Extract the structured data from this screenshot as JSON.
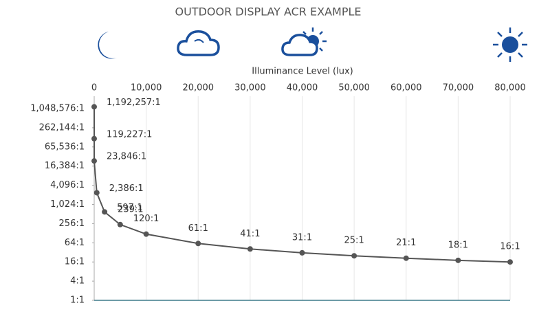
{
  "chart_data": {
    "type": "line",
    "title": "OUTDOOR DISPLAY ACR EXAMPLE",
    "x_label": "Illuminance Level (lux)",
    "x": [
      0,
      0,
      0,
      500,
      2000,
      5000,
      10000,
      20000,
      30000,
      40000,
      50000,
      60000,
      70000,
      80000
    ],
    "series": [
      {
        "color": "#555555",
        "values": [
          1192257,
          119227,
          23846,
          2386,
          597,
          239,
          120,
          61,
          41,
          31,
          25,
          21,
          18,
          16
        ],
        "value_labels": [
          "1,192,257:1",
          "119,227:1",
          "23,846:1",
          "2,386:1",
          "597:1",
          "239:1",
          "120:1",
          "61:1",
          "41:1",
          "31:1",
          "25:1",
          "21:1",
          "18:1",
          "16:1"
        ]
      }
    ],
    "xlim": [
      0,
      80000
    ],
    "xticks": [
      0,
      {
        "value": 10000,
        "label": "10,000"
      },
      {
        "value": 20000,
        "label": "20,000"
      },
      {
        "value": 30000,
        "label": "30,000"
      },
      {
        "value": 40000,
        "label": "40,000"
      },
      {
        "value": 50000,
        "label": "50,000"
      },
      {
        "value": 60000,
        "label": "60,000"
      },
      {
        "value": 70000,
        "label": "70,000"
      },
      {
        "value": 80000,
        "label": "80,000"
      }
    ],
    "ylim": [
      1,
      1048576
    ],
    "y_scale": "log",
    "yticks": [
      {
        "value": 1,
        "label": "1:1"
      },
      {
        "value": 4,
        "label": "4:1"
      },
      {
        "value": 16,
        "label": "16:1"
      },
      {
        "value": 64,
        "label": "64:1"
      },
      {
        "value": 256,
        "label": "256:1"
      },
      {
        "value": 1024,
        "label": "1,024:1"
      },
      {
        "value": 4096,
        "label": "4,096:1"
      },
      {
        "value": 16384,
        "label": "16,384:1"
      },
      {
        "value": 65536,
        "label": "65,536:1"
      },
      {
        "value": 262144,
        "label": "262,144:1"
      },
      {
        "value": 1048576,
        "label": "1,048,576:1"
      }
    ],
    "grid": true
  }
}
